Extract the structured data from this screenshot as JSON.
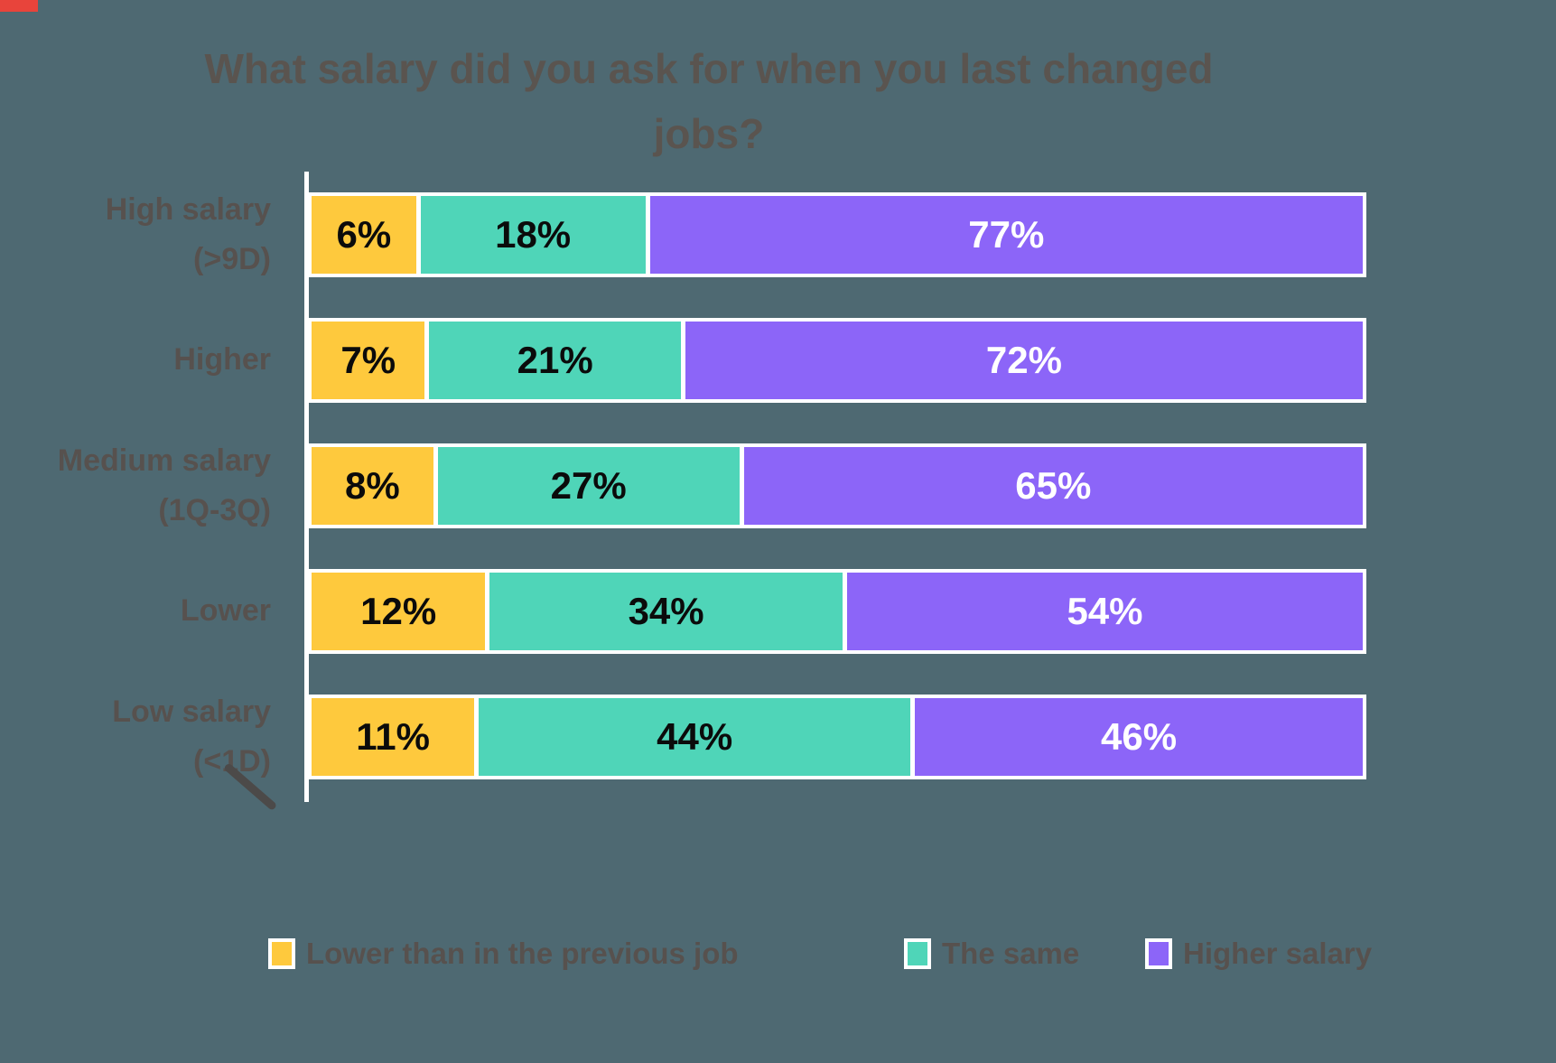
{
  "header": {
    "title_lines": [
      "What salary did you ask for when you last changed",
      "jobs?"
    ]
  },
  "chart_data": {
    "type": "bar",
    "orientation": "horizontal",
    "stacked": "100%",
    "title": "What salary did you ask for when you last changed jobs?",
    "unit": "%",
    "categories": [
      "High salary (>9D)",
      "Higher",
      "Medium salary (1Q-3Q)",
      "Lower",
      "Low salary (<1D)"
    ],
    "category_display_lines": [
      [
        "High salary",
        "(>9D)"
      ],
      [
        "Higher"
      ],
      [
        "Medium salary",
        "(1Q-3Q)"
      ],
      [
        "Lower"
      ],
      [
        "Low salary",
        "(<1D)"
      ]
    ],
    "series": [
      {
        "key": "lower-than-previous",
        "name": "Lower than in the previous job",
        "color": "#FEC93D",
        "value_text_color": "#0B0B0B",
        "values": [
          6,
          7,
          8,
          12,
          11
        ]
      },
      {
        "key": "the-same",
        "name": "The same",
        "color": "#4FD5B8",
        "value_text_color": "#0B0B0B",
        "values": [
          18,
          21,
          27,
          34,
          44
        ]
      },
      {
        "key": "higher-salary",
        "name": "Higher salary",
        "color": "#8C65F8",
        "value_text_color": "#FFFFFF",
        "values": [
          77,
          72,
          65,
          54,
          46
        ]
      }
    ],
    "x_range": [
      0,
      100
    ],
    "grid": false,
    "legend_position": "bottom",
    "background_color": "#4E6972",
    "axis_line_color": "#FFFFFF"
  }
}
